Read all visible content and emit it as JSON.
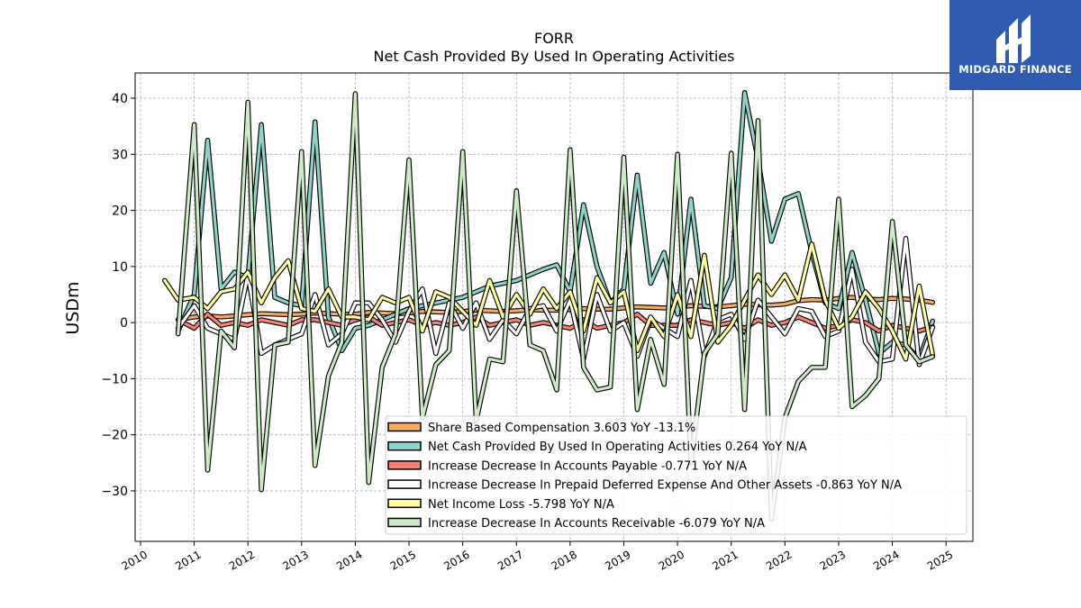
{
  "logo": {
    "text": "MIDGARD FINANCE",
    "background": "#2f5bb1"
  },
  "chart_data": {
    "type": "line",
    "title": "FORR",
    "subtitle": "Net Cash Provided By Used In Operating Activities",
    "ylabel": "USDm",
    "xlabel": "",
    "xlim": [
      2009.9,
      2025.5
    ],
    "ylim": [
      -39,
      44.5
    ],
    "xticks": [
      2010,
      2011,
      2012,
      2013,
      2014,
      2015,
      2016,
      2017,
      2018,
      2019,
      2020,
      2021,
      2022,
      2023,
      2024,
      2025
    ],
    "yticks": [
      -30,
      -20,
      -10,
      0,
      10,
      20,
      30,
      40
    ],
    "grid": true,
    "legend_position": "lower-center",
    "series": [
      {
        "name": "Share Based Compensation  3.603 YoY -13.1%",
        "color": "#f8aa5c",
        "x": [
          2010.7,
          2011.0,
          2011.25,
          2011.5,
          2011.75,
          2012.0,
          2012.25,
          2012.5,
          2012.75,
          2013.0,
          2013.25,
          2013.5,
          2013.75,
          2014.0,
          2014.25,
          2014.5,
          2014.75,
          2015.0,
          2015.25,
          2015.5,
          2015.75,
          2016.0,
          2016.25,
          2016.5,
          2016.75,
          2017.0,
          2017.25,
          2017.5,
          2017.75,
          2018.0,
          2018.25,
          2018.5,
          2018.75,
          2019.0,
          2019.25,
          2019.5,
          2019.75,
          2020.0,
          2020.25,
          2020.5,
          2020.75,
          2021.0,
          2021.25,
          2021.5,
          2021.75,
          2022.0,
          2022.25,
          2022.5,
          2022.75,
          2023.0,
          2023.25,
          2023.5,
          2023.75,
          2024.0,
          2024.25,
          2024.5,
          2024.75
        ],
        "y": [
          0.5,
          1.0,
          1.2,
          1.0,
          1.2,
          1.4,
          1.6,
          1.5,
          1.4,
          1.5,
          1.7,
          1.6,
          1.5,
          1.5,
          1.8,
          1.7,
          1.6,
          1.7,
          2.0,
          1.9,
          1.8,
          2.0,
          2.2,
          2.1,
          2.0,
          2.1,
          2.3,
          2.2,
          2.2,
          2.3,
          2.5,
          2.4,
          2.4,
          2.6,
          2.8,
          2.7,
          2.6,
          2.7,
          3.0,
          2.9,
          2.8,
          3.0,
          3.3,
          3.2,
          3.1,
          3.3,
          3.9,
          4.1,
          4.0,
          4.3,
          4.5,
          4.2,
          4.1,
          4.3,
          4.2,
          4.0,
          3.603
        ]
      },
      {
        "name": "Net Cash Provided By Used In Operating Activities  0.264 YoY N/A",
        "color": "#8dd3c7",
        "x": [
          2010.7,
          2011.0,
          2011.25,
          2011.5,
          2011.75,
          2012.0,
          2012.25,
          2012.5,
          2012.75,
          2013.0,
          2013.25,
          2013.5,
          2013.75,
          2014.0,
          2014.25,
          2014.5,
          2014.75,
          2015.0,
          2015.25,
          2015.5,
          2015.75,
          2016.0,
          2016.25,
          2016.5,
          2016.75,
          2017.0,
          2017.25,
          2017.5,
          2017.75,
          2018.0,
          2018.25,
          2018.5,
          2018.75,
          2019.0,
          2019.25,
          2019.5,
          2019.75,
          2020.0,
          2020.25,
          2020.5,
          2020.75,
          2021.0,
          2021.25,
          2021.5,
          2021.75,
          2022.0,
          2022.25,
          2022.5,
          2022.75,
          2023.0,
          2023.25,
          2023.5,
          2023.75,
          2024.0,
          2024.25,
          2024.5,
          2024.75
        ],
        "y": [
          -1.5,
          5.0,
          32.5,
          6.0,
          9.0,
          8.0,
          35.3,
          4.5,
          3.5,
          3.0,
          35.8,
          1.0,
          -5.0,
          -1.0,
          -0.5,
          0.5,
          1.5,
          2.5,
          3.0,
          3.5,
          4.0,
          4.5,
          5.5,
          6.5,
          7.0,
          7.5,
          8.5,
          9.5,
          10.3,
          5.5,
          21.0,
          10.0,
          3.5,
          6.0,
          26.3,
          7.0,
          12.5,
          1.5,
          22.0,
          3.0,
          2.5,
          8.0,
          41.0,
          29.0,
          14.5,
          22.0,
          23.0,
          12.5,
          3.5,
          2.5,
          12.5,
          4.0,
          -5.5,
          -3.5,
          -4.0,
          -6.5,
          0.264
        ]
      },
      {
        "name": "Increase Decrease In Accounts Payable  -0.771 YoY N/A",
        "color": "#fb8072",
        "x": [
          2010.7,
          2011.0,
          2011.25,
          2011.5,
          2011.75,
          2012.0,
          2012.25,
          2012.5,
          2012.75,
          2013.0,
          2013.25,
          2013.5,
          2013.75,
          2014.0,
          2014.25,
          2014.5,
          2014.75,
          2015.0,
          2015.25,
          2015.5,
          2015.75,
          2016.0,
          2016.25,
          2016.5,
          2016.75,
          2017.0,
          2017.25,
          2017.5,
          2017.75,
          2018.0,
          2018.25,
          2018.5,
          2018.75,
          2019.0,
          2019.25,
          2019.5,
          2019.75,
          2020.0,
          2020.25,
          2020.5,
          2020.75,
          2021.0,
          2021.25,
          2021.5,
          2021.75,
          2022.0,
          2022.25,
          2022.5,
          2022.75,
          2023.0,
          2023.25,
          2023.5,
          2023.75,
          2024.0,
          2024.25,
          2024.5,
          2024.75
        ],
        "y": [
          0.5,
          -1.0,
          1.5,
          -0.5,
          0.0,
          -0.5,
          0.5,
          0.0,
          -0.5,
          0.5,
          0.5,
          0.0,
          -0.5,
          0.5,
          1.0,
          -0.5,
          0.0,
          0.5,
          -0.5,
          0.0,
          -0.5,
          0.0,
          1.0,
          -0.5,
          0.0,
          0.5,
          -0.5,
          0.0,
          -0.5,
          -1.0,
          0.5,
          -1.0,
          -0.5,
          0.0,
          1.5,
          -0.5,
          -0.5,
          -0.5,
          0.5,
          0.0,
          -0.5,
          0.0,
          -1.0,
          0.5,
          -0.5,
          0.0,
          1.0,
          0.0,
          -1.0,
          -0.5,
          0.5,
          0.0,
          -1.5,
          -0.5,
          -1.0,
          -1.5,
          -0.771
        ]
      },
      {
        "name": "Increase Decrease In Prepaid Deferred Expense And Other Assets  -0.863 YoY N/A",
        "color": "#ffffff",
        "x": [
          2010.7,
          2011.0,
          2011.25,
          2011.5,
          2011.75,
          2012.0,
          2012.25,
          2012.5,
          2012.75,
          2013.0,
          2013.25,
          2013.5,
          2013.75,
          2014.0,
          2014.25,
          2014.5,
          2014.75,
          2015.0,
          2015.25,
          2015.5,
          2015.75,
          2016.0,
          2016.25,
          2016.5,
          2016.75,
          2017.0,
          2017.25,
          2017.5,
          2017.75,
          2018.0,
          2018.25,
          2018.5,
          2018.75,
          2019.0,
          2019.25,
          2019.5,
          2019.75,
          2020.0,
          2020.25,
          2020.5,
          2020.75,
          2021.0,
          2021.25,
          2021.5,
          2021.75,
          2022.0,
          2022.25,
          2022.5,
          2022.75,
          2023.0,
          2023.25,
          2023.5,
          2023.75,
          2024.0,
          2024.25,
          2024.5,
          2024.75
        ],
        "y": [
          -1.0,
          3.0,
          -1.0,
          -2.0,
          -3.0,
          8.5,
          -5.5,
          -4.0,
          -3.0,
          -2.0,
          5.0,
          -4.0,
          -2.0,
          3.5,
          3.5,
          0.5,
          -3.5,
          2.0,
          6.0,
          -5.5,
          3.5,
          -1.0,
          3.5,
          -3.0,
          0.5,
          -2.0,
          2.5,
          3.0,
          -1.5,
          4.0,
          -6.5,
          5.0,
          -1.5,
          0.0,
          -6.0,
          0.5,
          -1.0,
          -2.5,
          7.5,
          -6.0,
          0.5,
          1.5,
          -3.0,
          4.0,
          1.0,
          -2.0,
          2.5,
          2.0,
          -2.5,
          -1.5,
          9.5,
          -3.5,
          -7.0,
          -6.5,
          15.0,
          -7.5,
          -0.863
        ]
      },
      {
        "name": "Net Income Loss  -5.798 YoY N/A",
        "color": "#ffffa0",
        "x": [
          2010.45,
          2010.7,
          2011.0,
          2011.25,
          2011.5,
          2011.75,
          2012.0,
          2012.25,
          2012.5,
          2012.75,
          2013.0,
          2013.25,
          2013.5,
          2013.75,
          2014.0,
          2014.25,
          2014.5,
          2014.75,
          2015.0,
          2015.25,
          2015.5,
          2015.75,
          2016.0,
          2016.25,
          2016.5,
          2016.75,
          2017.0,
          2017.25,
          2017.5,
          2017.75,
          2018.0,
          2018.25,
          2018.5,
          2018.75,
          2019.0,
          2019.25,
          2019.5,
          2019.75,
          2020.0,
          2020.25,
          2020.5,
          2020.75,
          2021.0,
          2021.25,
          2021.5,
          2021.75,
          2022.0,
          2022.25,
          2022.5,
          2022.75,
          2023.0,
          2023.25,
          2023.5,
          2023.75,
          2024.0,
          2024.25,
          2024.5,
          2024.75
        ],
        "y": [
          7.5,
          4.0,
          4.5,
          2.5,
          5.5,
          6.0,
          9.0,
          3.5,
          8.0,
          11.0,
          2.5,
          2.0,
          6.0,
          1.0,
          1.0,
          0.5,
          4.5,
          3.5,
          4.5,
          -1.5,
          5.5,
          4.5,
          2.0,
          -0.5,
          7.5,
          1.0,
          5.0,
          1.5,
          6.0,
          2.5,
          5.5,
          -1.5,
          8.0,
          3.5,
          5.5,
          -5.0,
          1.0,
          -2.5,
          5.0,
          -2.5,
          12.0,
          -3.5,
          -0.5,
          4.0,
          8.5,
          5.0,
          8.5,
          4.0,
          14.0,
          4.0,
          -1.0,
          1.0,
          5.5,
          2.5,
          -1.5,
          -6.5,
          6.5,
          -5.798
        ]
      },
      {
        "name": "Increase Decrease In Accounts Receivable  -6.079 YoY N/A",
        "color": "#ccebc5",
        "x": [
          2010.7,
          2011.0,
          2011.25,
          2011.5,
          2011.75,
          2012.0,
          2012.25,
          2012.5,
          2012.75,
          2013.0,
          2013.25,
          2013.5,
          2013.75,
          2014.0,
          2014.25,
          2014.5,
          2014.75,
          2015.0,
          2015.25,
          2015.5,
          2015.75,
          2016.0,
          2016.25,
          2016.5,
          2016.75,
          2017.0,
          2017.25,
          2017.5,
          2017.75,
          2018.0,
          2018.25,
          2018.5,
          2018.75,
          2019.0,
          2019.25,
          2019.5,
          2019.75,
          2020.0,
          2020.25,
          2020.5,
          2020.75,
          2021.0,
          2021.25,
          2021.5,
          2021.75,
          2022.0,
          2022.25,
          2022.5,
          2022.75,
          2023.0,
          2023.25,
          2023.5,
          2023.75,
          2024.0,
          2024.25,
          2024.5,
          2024.75
        ],
        "y": [
          -2.0,
          35.3,
          -26.3,
          -1.5,
          -4.5,
          39.3,
          -29.8,
          -4.0,
          -3.5,
          30.5,
          -25.5,
          -9.5,
          -3.5,
          40.8,
          -28.5,
          -8.0,
          -2.0,
          29.0,
          -17.0,
          -7.5,
          -5.0,
          30.5,
          -17.5,
          -6.5,
          -7.0,
          23.5,
          -4.0,
          -5.0,
          -12.0,
          30.8,
          -8.0,
          -12.0,
          -11.5,
          29.5,
          -15.5,
          -3.0,
          -11.0,
          30.0,
          -25.0,
          -5.5,
          -2.0,
          30.2,
          -15.5,
          36.0,
          -35.0,
          -17.0,
          -10.5,
          -8.0,
          -8.0,
          22.0,
          -15.0,
          -13.0,
          -10.0,
          18.0,
          -4.0,
          -7.0,
          -6.079
        ]
      }
    ]
  }
}
